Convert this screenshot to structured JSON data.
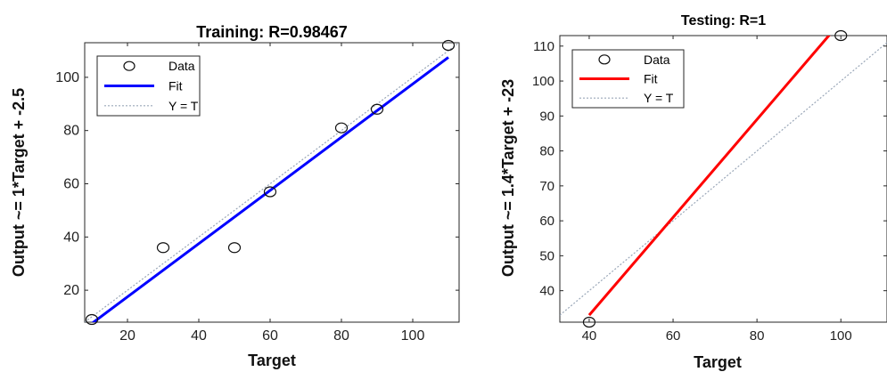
{
  "chart_data": [
    {
      "type": "scatter",
      "title": "Training: R=0.98467",
      "xlabel": "Target",
      "ylabel": "Output ~= 1*Target + -2.5",
      "xlim": [
        8,
        113
      ],
      "ylim": [
        8,
        113
      ],
      "xticks": [
        20,
        40,
        60,
        80,
        100
      ],
      "yticks": [
        20,
        40,
        60,
        80,
        100
      ],
      "grid": false,
      "legend": {
        "position": "top-left",
        "entries": [
          "Data",
          "Fit",
          "Y = T"
        ]
      },
      "data_points": {
        "x": [
          10,
          30,
          50,
          60,
          80,
          90,
          110
        ],
        "y": [
          9,
          36,
          36,
          57,
          81,
          88,
          112
        ]
      },
      "fit_line": {
        "slope": 1,
        "intercept": -2.5,
        "color": "#0000ff"
      },
      "identity_line": {
        "slope": 1,
        "intercept": 0
      }
    },
    {
      "type": "scatter",
      "title": "Testing: R=1",
      "xlabel": "Target",
      "ylabel": "Output ~= 1.4*Target + -23",
      "xlim": [
        33,
        111
      ],
      "ylim": [
        31,
        113
      ],
      "xticks": [
        40,
        60,
        80,
        100
      ],
      "yticks": [
        40,
        50,
        60,
        70,
        80,
        90,
        100,
        110
      ],
      "grid": false,
      "legend": {
        "position": "top-left",
        "entries": [
          "Data",
          "Fit",
          "Y = T"
        ]
      },
      "data_points": {
        "x": [
          40,
          100
        ],
        "y": [
          31,
          113
        ]
      },
      "fit_line": {
        "slope": 1.4,
        "intercept": -23,
        "color": "#ff0000"
      },
      "identity_line": {
        "slope": 1,
        "intercept": 0
      }
    }
  ]
}
